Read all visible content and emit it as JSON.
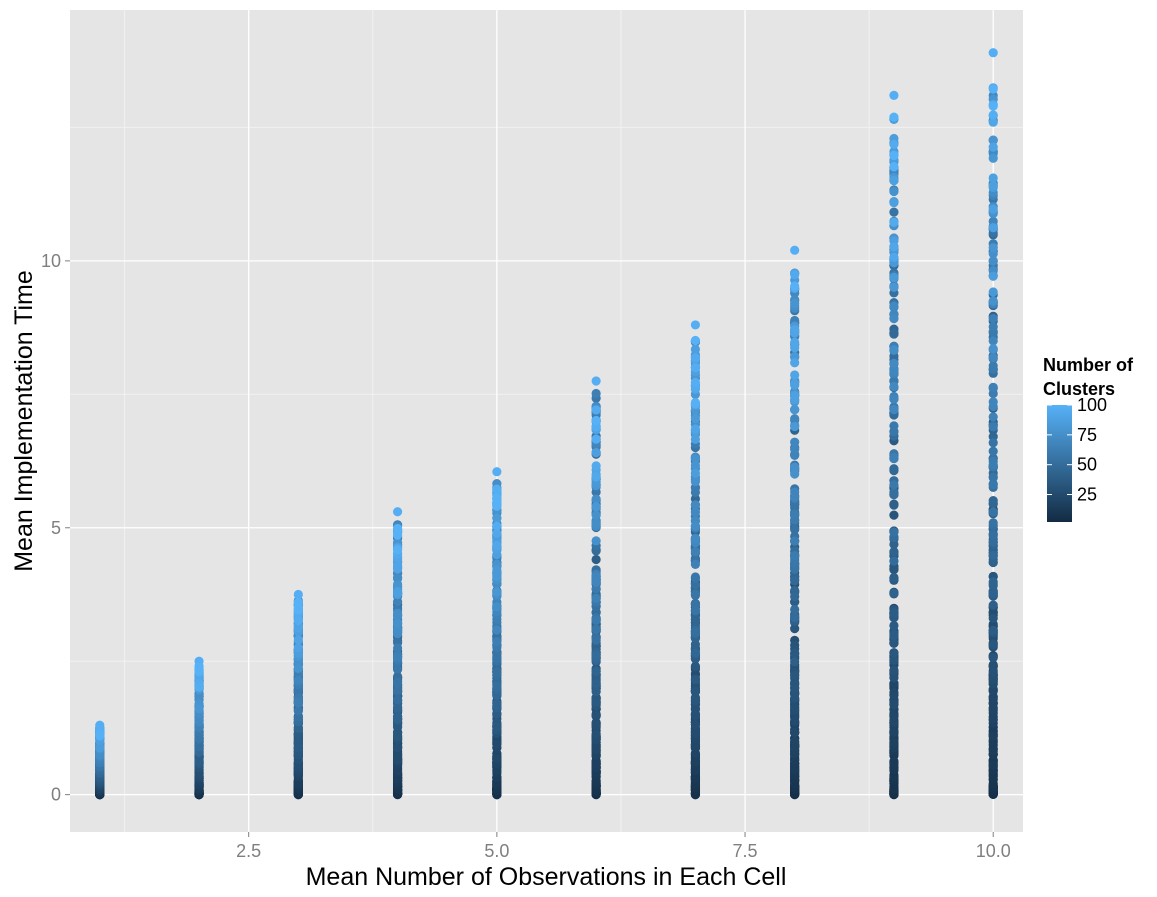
{
  "chart_data": {
    "type": "scatter",
    "title": "",
    "xlabel": "Mean Number of Observations in Each Cell",
    "ylabel": "Mean Implementation Time",
    "xlim": [
      0.7,
      10.3
    ],
    "ylim": [
      -0.7,
      14.7
    ],
    "x_ticks": [
      {
        "value": 2.5,
        "label": "2.5"
      },
      {
        "value": 5.0,
        "label": "5.0"
      },
      {
        "value": 7.5,
        "label": "7.5"
      },
      {
        "value": 10.0,
        "label": "10.0"
      }
    ],
    "y_ticks": [
      {
        "value": 0,
        "label": "0"
      },
      {
        "value": 5,
        "label": "5"
      },
      {
        "value": 10,
        "label": "10"
      }
    ],
    "grid": true,
    "background": "#e5e5e5",
    "grid_major_color": "#ffffff",
    "grid_minor_color": "#f2f2f2",
    "legend": {
      "title_line1": "Number of",
      "title_line2": "Clusters",
      "position": "right",
      "breaks": [
        {
          "value": 100,
          "label": "100"
        },
        {
          "value": 75,
          "label": "75"
        },
        {
          "value": 50,
          "label": "50"
        },
        {
          "value": 25,
          "label": "25"
        }
      ],
      "range": [
        2,
        100
      ],
      "low_color": "#132b43",
      "high_color": "#56b1f7"
    },
    "column_max": [
      {
        "x": 1,
        "max": 1.3
      },
      {
        "x": 2,
        "max": 2.5
      },
      {
        "x": 3,
        "max": 3.75
      },
      {
        "x": 4,
        "max": 5.3
      },
      {
        "x": 5,
        "max": 6.05
      },
      {
        "x": 6,
        "max": 7.75
      },
      {
        "x": 7,
        "max": 8.8
      },
      {
        "x": 8,
        "max": 10.2
      },
      {
        "x": 9,
        "max": 13.1
      },
      {
        "x": 10,
        "max": 13.9
      }
    ]
  }
}
